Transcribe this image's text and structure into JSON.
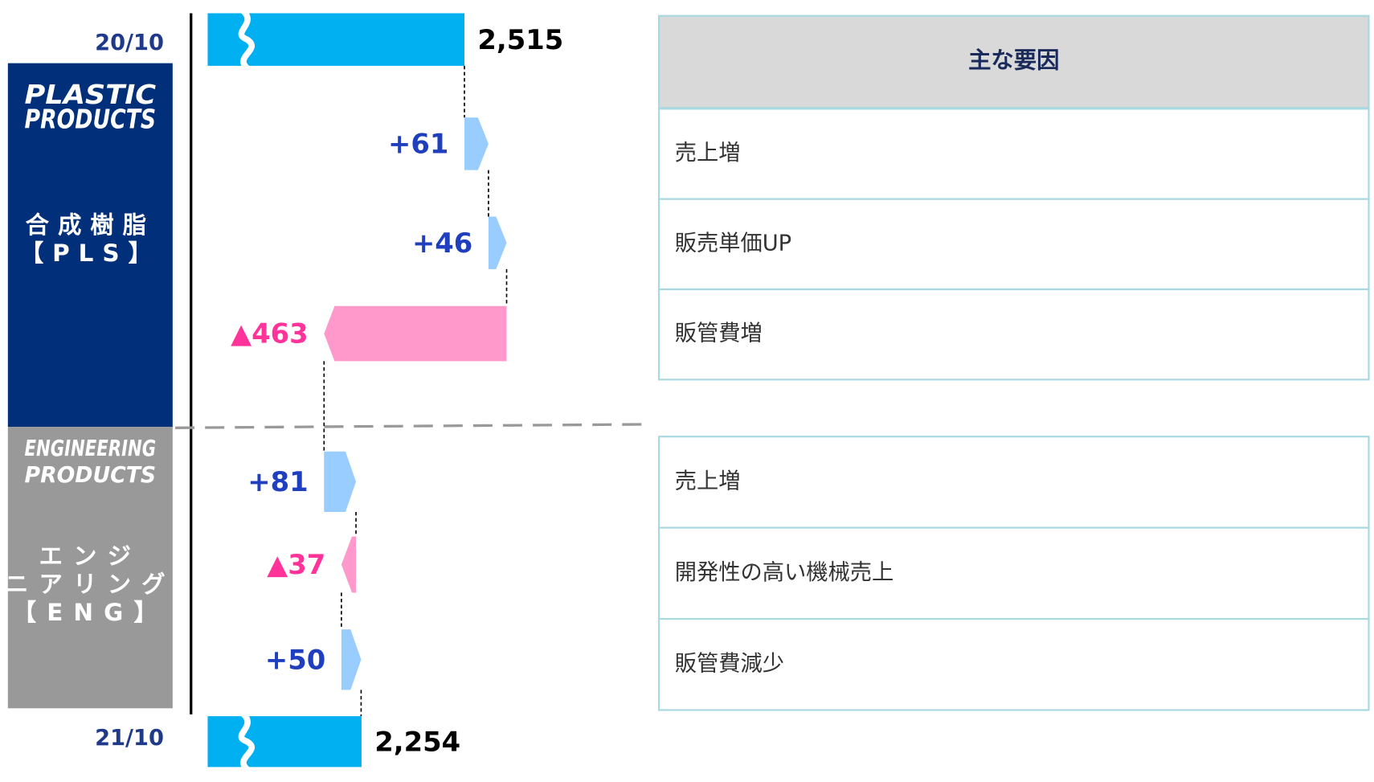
{
  "chart_data": {
    "type": "waterfall",
    "categories": [
      "20/10",
      null,
      null,
      null,
      null,
      null,
      null,
      "21/10"
    ],
    "values": [
      2515,
      61,
      46,
      -463,
      81,
      -37,
      50,
      2254
    ],
    "value_labels": [
      "2,515",
      "+61",
      "+46",
      "▲463",
      "+81",
      "▲37",
      "+50",
      "2,254"
    ],
    "colors": {
      "total": "#00b0f0",
      "increase": "#99ccff",
      "decrease": "#ff99cc"
    },
    "sections": [
      {
        "logo": [
          "PLASTIC",
          "PRODUCTS"
        ],
        "name": [
          "合成樹脂",
          "【PLS】"
        ]
      },
      {
        "logo": [
          "ENGINEERING",
          "PRODUCTS"
        ],
        "name": [
          "エンジ",
          "ニアリング",
          "【ENG】"
        ]
      }
    ],
    "table": {
      "header": "主な要因",
      "rows": [
        "売上増",
        "販売単価UP",
        "販管費増",
        "売上増",
        "開発性の高い機械売上",
        "販管費減少"
      ]
    }
  }
}
